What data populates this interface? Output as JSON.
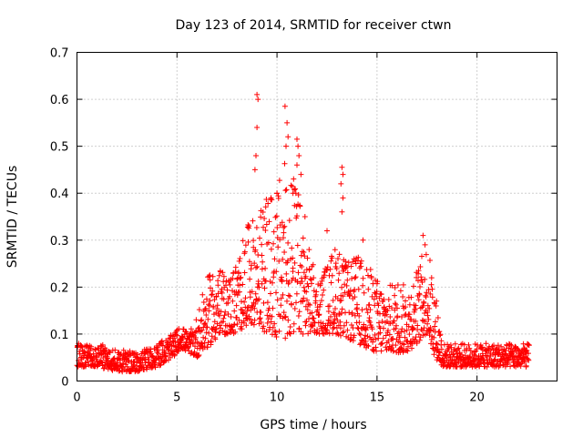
{
  "chart_data": {
    "type": "scatter",
    "title": "Day 123 of 2014, SRMTID for receiver ctwn",
    "xlabel": "GPS time / hours",
    "ylabel": "SRMTID / TECUs",
    "xlim": [
      0,
      24
    ],
    "ylim": [
      0,
      0.7
    ],
    "xticks": [
      0,
      5,
      10,
      15,
      20
    ],
    "xtick_labels": [
      "0",
      "5",
      "10",
      "15",
      "20"
    ],
    "yticks": [
      0,
      0.1,
      0.2,
      0.3,
      0.4,
      0.5,
      0.6,
      0.7
    ],
    "ytick_labels": [
      "0",
      "0.1",
      "0.2",
      "0.3",
      "0.4",
      "0.5",
      "0.6",
      "0.7"
    ],
    "grid": true,
    "marker": "plus",
    "marker_color": "#ff0000",
    "series": [
      {
        "name": "SRMTID",
        "envelope_x": [
          0,
          1,
          2,
          3,
          4,
          4.8,
          5.2,
          5.6,
          6,
          6.5,
          7,
          7.5,
          8,
          8.5,
          9,
          9.5,
          10,
          10.5,
          11,
          11.5,
          12,
          12.5,
          13,
          13.5,
          14,
          14.5,
          15,
          15.5,
          16,
          16.5,
          17,
          17.5,
          17.9,
          18.3,
          19,
          20,
          21,
          22,
          22.6
        ],
        "envelope_lo": [
          0.03,
          0.03,
          0.02,
          0.02,
          0.03,
          0.05,
          0.07,
          0.06,
          0.05,
          0.07,
          0.09,
          0.1,
          0.1,
          0.12,
          0.12,
          0.1,
          0.09,
          0.09,
          0.1,
          0.1,
          0.1,
          0.1,
          0.1,
          0.09,
          0.08,
          0.07,
          0.06,
          0.06,
          0.06,
          0.06,
          0.08,
          0.1,
          0.05,
          0.03,
          0.03,
          0.03,
          0.03,
          0.03,
          0.03
        ],
        "envelope_hi": [
          0.08,
          0.08,
          0.07,
          0.06,
          0.08,
          0.1,
          0.12,
          0.1,
          0.14,
          0.22,
          0.25,
          0.22,
          0.26,
          0.33,
          0.36,
          0.39,
          0.42,
          0.48,
          0.42,
          0.3,
          0.22,
          0.25,
          0.3,
          0.25,
          0.27,
          0.25,
          0.22,
          0.2,
          0.22,
          0.2,
          0.24,
          0.3,
          0.2,
          0.08,
          0.08,
          0.08,
          0.08,
          0.08,
          0.08
        ],
        "spikes": [
          [
            9.0,
            0.61
          ],
          [
            9.05,
            0.6
          ],
          [
            9.0,
            0.54
          ],
          [
            8.95,
            0.48
          ],
          [
            8.9,
            0.45
          ],
          [
            10.4,
            0.585
          ],
          [
            10.5,
            0.55
          ],
          [
            10.55,
            0.52
          ],
          [
            10.45,
            0.5
          ],
          [
            11.0,
            0.515
          ],
          [
            11.05,
            0.5
          ],
          [
            11.1,
            0.48
          ],
          [
            11.0,
            0.46
          ],
          [
            11.2,
            0.44
          ],
          [
            13.25,
            0.455
          ],
          [
            13.3,
            0.44
          ],
          [
            13.2,
            0.42
          ],
          [
            13.3,
            0.39
          ],
          [
            13.25,
            0.36
          ],
          [
            9.7,
            0.39
          ],
          [
            10.0,
            0.4
          ],
          [
            10.8,
            0.4
          ],
          [
            11.4,
            0.35
          ],
          [
            12.5,
            0.32
          ],
          [
            17.3,
            0.31
          ],
          [
            17.4,
            0.29
          ],
          [
            14.3,
            0.3
          ],
          [
            8.6,
            0.33
          ]
        ]
      }
    ]
  }
}
